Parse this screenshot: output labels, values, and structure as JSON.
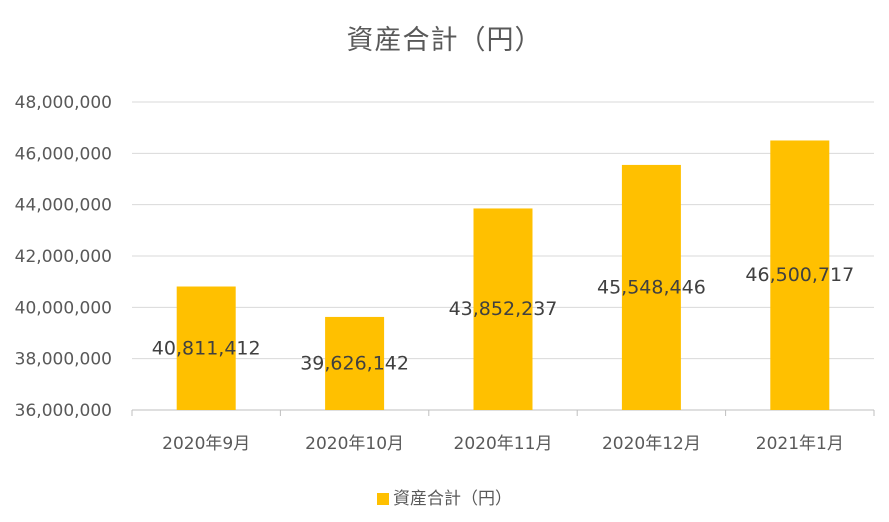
{
  "chart_data": {
    "type": "bar",
    "title": "資産合計（円）",
    "categories": [
      "2020年9月",
      "2020年10月",
      "2020年11月",
      "2020年12月",
      "2021年1月"
    ],
    "series": [
      {
        "name": "資産合計（円）",
        "values": [
          40811412,
          39626142,
          43852237,
          45548446,
          46500717
        ],
        "data_labels": [
          "40,811,412",
          "39,626,142",
          "43,852,237",
          "45,548,446",
          "46,500,717"
        ],
        "color": "#FFC000"
      }
    ],
    "y_ticks": [
      "36,000,000",
      "38,000,000",
      "40,000,000",
      "42,000,000",
      "44,000,000",
      "46,000,000",
      "48,000,000"
    ],
    "ylim": [
      36000000,
      48000000
    ],
    "grid": true,
    "legend": "bottom"
  }
}
